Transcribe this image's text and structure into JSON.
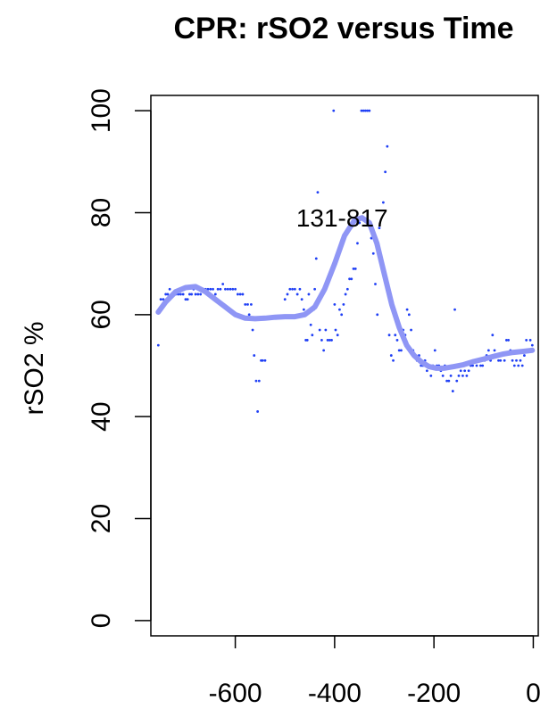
{
  "chart_data": {
    "type": "scatter",
    "title": "CPR: rSO2 versus Time",
    "xlabel": "",
    "ylabel": "rSO2 %",
    "xlim": [
      -770,
      10
    ],
    "ylim": [
      -3,
      103
    ],
    "xticks": [
      -600,
      -400,
      -200,
      0
    ],
    "yticks": [
      0,
      20,
      40,
      60,
      80,
      100
    ],
    "grid": false,
    "annotation": {
      "text": "131-817",
      "x": -385,
      "y": 79
    },
    "colors": {
      "points": "#1f3ff5",
      "smooth": "#8f96f5"
    },
    "points": [
      [
        -755,
        54
      ],
      [
        -750,
        63
      ],
      [
        -745,
        63
      ],
      [
        -740,
        64
      ],
      [
        -736,
        64
      ],
      [
        -732,
        65
      ],
      [
        -728,
        64
      ],
      [
        -724,
        64
      ],
      [
        -720,
        64
      ],
      [
        -715,
        64
      ],
      [
        -710,
        64
      ],
      [
        -705,
        64
      ],
      [
        -700,
        63
      ],
      [
        -696,
        63
      ],
      [
        -692,
        64
      ],
      [
        -688,
        64
      ],
      [
        -684,
        65
      ],
      [
        -680,
        64
      ],
      [
        -675,
        64
      ],
      [
        -670,
        64
      ],
      [
        -665,
        65
      ],
      [
        -660,
        65
      ],
      [
        -655,
        65
      ],
      [
        -650,
        65
      ],
      [
        -645,
        65
      ],
      [
        -640,
        64
      ],
      [
        -635,
        65
      ],
      [
        -630,
        65
      ],
      [
        -625,
        66
      ],
      [
        -620,
        65
      ],
      [
        -615,
        65
      ],
      [
        -610,
        65
      ],
      [
        -605,
        65
      ],
      [
        -600,
        65
      ],
      [
        -595,
        64
      ],
      [
        -590,
        64
      ],
      [
        -585,
        64
      ],
      [
        -580,
        62
      ],
      [
        -575,
        62
      ],
      [
        -572,
        60
      ],
      [
        -568,
        62
      ],
      [
        -565,
        57
      ],
      [
        -562,
        52
      ],
      [
        -558,
        47
      ],
      [
        -555,
        41
      ],
      [
        -552,
        47
      ],
      [
        -548,
        51
      ],
      [
        -545,
        51
      ],
      [
        -540,
        51
      ],
      [
        -500,
        63
      ],
      [
        -495,
        64
      ],
      [
        -490,
        65
      ],
      [
        -485,
        65
      ],
      [
        -480,
        65
      ],
      [
        -475,
        64
      ],
      [
        -470,
        65
      ],
      [
        -466,
        63
      ],
      [
        -462,
        61
      ],
      [
        -458,
        55
      ],
      [
        -455,
        55
      ],
      [
        -452,
        64
      ],
      [
        -448,
        58
      ],
      [
        -445,
        56
      ],
      [
        -442,
        61
      ],
      [
        -440,
        65
      ],
      [
        -437,
        71
      ],
      [
        -434,
        84
      ],
      [
        -430,
        57
      ],
      [
        -426,
        55
      ],
      [
        -422,
        53
      ],
      [
        -418,
        57
      ],
      [
        -414,
        55
      ],
      [
        -410,
        55
      ],
      [
        -406,
        55
      ],
      [
        -402,
        100
      ],
      [
        -400,
        62
      ],
      [
        -398,
        57
      ],
      [
        -394,
        56
      ],
      [
        -390,
        61
      ],
      [
        -386,
        60
      ],
      [
        -382,
        62
      ],
      [
        -378,
        64
      ],
      [
        -374,
        65
      ],
      [
        -370,
        67
      ],
      [
        -366,
        67
      ],
      [
        -362,
        69
      ],
      [
        -358,
        69
      ],
      [
        -354,
        74
      ],
      [
        -350,
        78
      ],
      [
        -346,
        100
      ],
      [
        -342,
        100
      ],
      [
        -338,
        100
      ],
      [
        -334,
        100
      ],
      [
        -330,
        100
      ],
      [
        -326,
        75
      ],
      [
        -322,
        72
      ],
      [
        -318,
        66
      ],
      [
        -314,
        60
      ],
      [
        -310,
        77
      ],
      [
        -306,
        71
      ],
      [
        -302,
        82
      ],
      [
        -298,
        88
      ],
      [
        -294,
        93
      ],
      [
        -290,
        56
      ],
      [
        -286,
        52
      ],
      [
        -282,
        51
      ],
      [
        -278,
        56
      ],
      [
        -274,
        55
      ],
      [
        -270,
        53
      ],
      [
        -266,
        53
      ],
      [
        -262,
        57
      ],
      [
        -258,
        56
      ],
      [
        -254,
        61
      ],
      [
        -250,
        60
      ],
      [
        -246,
        57
      ],
      [
        -242,
        53
      ],
      [
        -238,
        52
      ],
      [
        -234,
        51
      ],
      [
        -230,
        52
      ],
      [
        -226,
        50
      ],
      [
        -222,
        50
      ],
      [
        -218,
        51
      ],
      [
        -214,
        49
      ],
      [
        -210,
        50
      ],
      [
        -206,
        48
      ],
      [
        -202,
        50
      ],
      [
        -198,
        53
      ],
      [
        -194,
        50
      ],
      [
        -190,
        50
      ],
      [
        -186,
        49
      ],
      [
        -182,
        48
      ],
      [
        -178,
        50
      ],
      [
        -174,
        47
      ],
      [
        -170,
        47
      ],
      [
        -166,
        48
      ],
      [
        -162,
        45
      ],
      [
        -158,
        61
      ],
      [
        -154,
        47
      ],
      [
        -150,
        48
      ],
      [
        -146,
        49
      ],
      [
        -142,
        48
      ],
      [
        -138,
        49
      ],
      [
        -134,
        48
      ],
      [
        -130,
        49
      ],
      [
        -126,
        50
      ],
      [
        -122,
        50
      ],
      [
        -118,
        51
      ],
      [
        -114,
        50
      ],
      [
        -110,
        51
      ],
      [
        -106,
        50
      ],
      [
        -102,
        50
      ],
      [
        -98,
        51
      ],
      [
        -94,
        52
      ],
      [
        -90,
        53
      ],
      [
        -86,
        51
      ],
      [
        -82,
        56
      ],
      [
        -78,
        53
      ],
      [
        -74,
        52
      ],
      [
        -70,
        51
      ],
      [
        -66,
        51
      ],
      [
        -62,
        52
      ],
      [
        -58,
        51
      ],
      [
        -54,
        55
      ],
      [
        -50,
        55
      ],
      [
        -46,
        53
      ],
      [
        -42,
        51
      ],
      [
        -38,
        50
      ],
      [
        -34,
        51
      ],
      [
        -30,
        50
      ],
      [
        -26,
        51
      ],
      [
        -22,
        50
      ],
      [
        -18,
        52
      ],
      [
        -14,
        55
      ],
      [
        -10,
        53
      ],
      [
        -6,
        55
      ],
      [
        -2,
        54
      ]
    ],
    "smooth": [
      [
        -755,
        60.5
      ],
      [
        -740,
        62.5
      ],
      [
        -720,
        64.5
      ],
      [
        -700,
        65.3
      ],
      [
        -680,
        65.5
      ],
      [
        -660,
        64.5
      ],
      [
        -640,
        63
      ],
      [
        -620,
        61.5
      ],
      [
        -600,
        60
      ],
      [
        -580,
        59.3
      ],
      [
        -560,
        59.2
      ],
      [
        -540,
        59.3
      ],
      [
        -520,
        59.5
      ],
      [
        -500,
        59.6
      ],
      [
        -480,
        59.6
      ],
      [
        -460,
        60
      ],
      [
        -440,
        61.5
      ],
      [
        -420,
        65
      ],
      [
        -400,
        70
      ],
      [
        -380,
        75.5
      ],
      [
        -360,
        78.5
      ],
      [
        -345,
        79
      ],
      [
        -330,
        78
      ],
      [
        -315,
        74
      ],
      [
        -300,
        68
      ],
      [
        -285,
        62
      ],
      [
        -270,
        57.5
      ],
      [
        -255,
        54
      ],
      [
        -240,
        52
      ],
      [
        -225,
        50.7
      ],
      [
        -210,
        49.8
      ],
      [
        -195,
        49.5
      ],
      [
        -180,
        49.5
      ],
      [
        -160,
        49.8
      ],
      [
        -140,
        50.2
      ],
      [
        -120,
        50.8
      ],
      [
        -100,
        51.3
      ],
      [
        -80,
        51.8
      ],
      [
        -60,
        52.3
      ],
      [
        -40,
        52.6
      ],
      [
        -20,
        52.8
      ],
      [
        -2,
        53
      ]
    ]
  }
}
